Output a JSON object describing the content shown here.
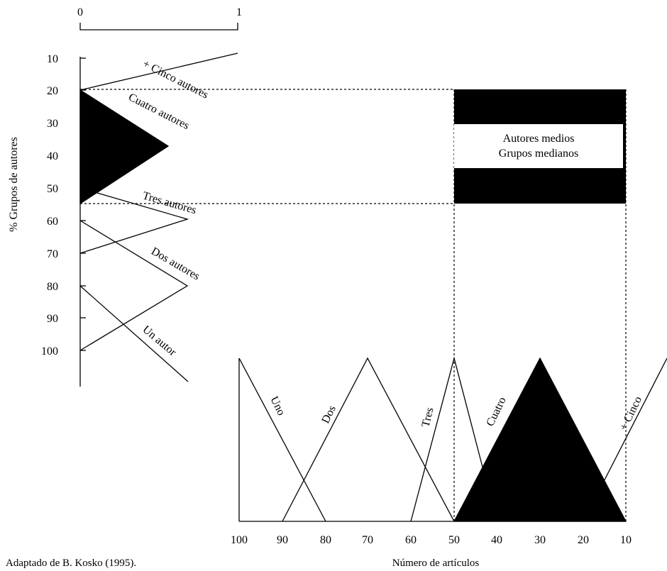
{
  "top_axis": {
    "ticks": [
      "0",
      "1"
    ]
  },
  "y_axis": {
    "label": "% Grupos de autores",
    "ticks": [
      "10",
      "20",
      "30",
      "40",
      "50",
      "60",
      "70",
      "80",
      "90",
      "100"
    ]
  },
  "x_axis": {
    "label": "Número de artículos",
    "ticks": [
      "100",
      "90",
      "80",
      "70",
      "60",
      "50",
      "40",
      "30",
      "20",
      "10"
    ]
  },
  "y_sets": [
    {
      "label": "+ Cinco autores",
      "filled": false
    },
    {
      "label": "Cuatro autores",
      "filled": true
    },
    {
      "label": "Tres autores",
      "filled": false
    },
    {
      "label": "Dos autores",
      "filled": false
    },
    {
      "label": "Un autor",
      "filled": false
    }
  ],
  "x_sets": [
    {
      "label": "Uno",
      "filled": false
    },
    {
      "label": "Dos",
      "filled": false
    },
    {
      "label": "Tres",
      "filled": false
    },
    {
      "label": "Cuatro",
      "filled": true
    },
    {
      "label": "+ Cinco",
      "filled": false
    }
  ],
  "result_box": {
    "line1": "Autores medios",
    "line2": "Grupos medianos",
    "y_range": [
      20,
      55
    ],
    "x_range": [
      50,
      10
    ]
  },
  "caption": "Adaptado de B. Kosko (1995).",
  "colors": {
    "ink": "#000000",
    "paper": "#ffffff"
  }
}
